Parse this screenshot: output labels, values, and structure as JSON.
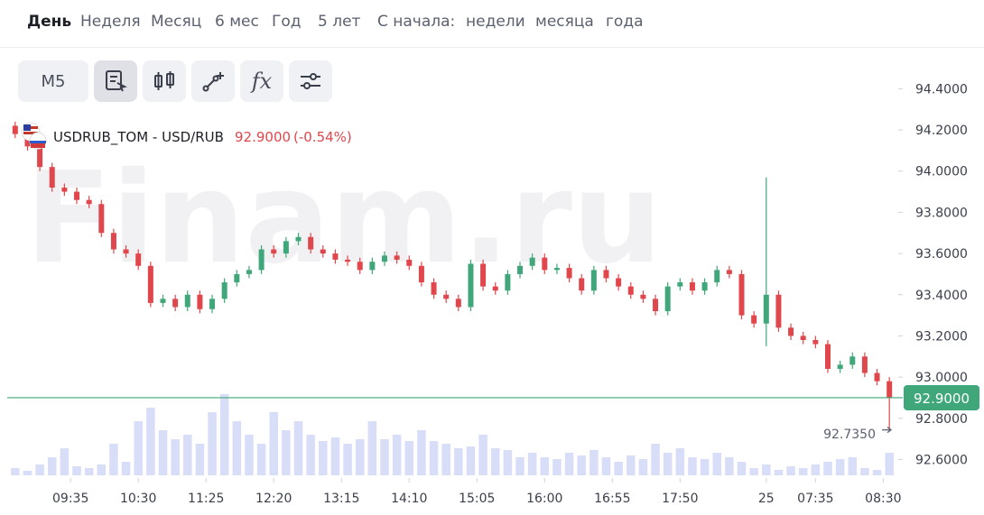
{
  "nav": [
    "День",
    "Неделя",
    "Месяц",
    "6 мес",
    "Год",
    "5 лет",
    "С начала:",
    "недели",
    "месяца",
    "года"
  ],
  "toolbar": {
    "interval": "M5",
    "indicators": "fx"
  },
  "header": {
    "instrument": "USDRUB_TOM - USD/RUB",
    "change": "(-0.54%)"
  },
  "watermark": "Finam.ru",
  "chart_data": {
    "type": "candlestick",
    "up_color": "#3fa77a",
    "down_color": "#e0474c",
    "volume_color": "#d9def8",
    "xlim": [
      0,
      72
    ],
    "xticks": [
      {
        "value": 5,
        "label": "09:35"
      },
      {
        "value": 10.5,
        "label": "10:30"
      },
      {
        "value": 16,
        "label": "11:25"
      },
      {
        "value": 21.5,
        "label": "12:20"
      },
      {
        "value": 27,
        "label": "13:15"
      },
      {
        "value": 32.5,
        "label": "14:10"
      },
      {
        "value": 38,
        "label": "15:05"
      },
      {
        "value": 43.5,
        "label": "16:00"
      },
      {
        "value": 49,
        "label": "16:55"
      },
      {
        "value": 54.5,
        "label": "17:50"
      },
      {
        "value": 61.5,
        "label": "25"
      },
      {
        "value": 65.5,
        "label": "07:35"
      },
      {
        "value": 71,
        "label": "08:30"
      }
    ],
    "ylim": [
      92.51,
      94.59
    ],
    "yticks": [
      {
        "value": 94.4,
        "label": "94.4000"
      },
      {
        "value": 94.2,
        "label": "94.2000"
      },
      {
        "value": 94.0,
        "label": "94.0000"
      },
      {
        "value": 93.8,
        "label": "93.8000"
      },
      {
        "value": 93.6,
        "label": "93.6000"
      },
      {
        "value": 93.4,
        "label": "93.4000"
      },
      {
        "value": 93.2,
        "label": "93.2000"
      },
      {
        "value": 93.0,
        "label": "93.0000"
      },
      {
        "value": 92.8,
        "label": "92.8000"
      },
      {
        "value": 92.6,
        "label": "92.6000"
      }
    ],
    "last_price": {
      "value": 92.9,
      "label": "92.9000",
      "color": "#3fa77a"
    },
    "min_marker": {
      "value": 92.735,
      "label": "92.7350"
    },
    "open": [
      94.22,
      94.18,
      94.12,
      94.02,
      93.92,
      93.9,
      93.86,
      93.84,
      93.7,
      93.62,
      93.6,
      93.54,
      93.36,
      93.38,
      93.34,
      93.4,
      93.33,
      93.38,
      93.46,
      93.5,
      93.52,
      93.62,
      93.6,
      93.66,
      93.68,
      93.62,
      93.6,
      93.57,
      93.56,
      93.52,
      93.56,
      93.59,
      93.57,
      93.54,
      93.46,
      93.4,
      93.38,
      93.34,
      93.55,
      93.44,
      93.42,
      93.5,
      93.54,
      93.58,
      93.52,
      93.53,
      93.48,
      93.42,
      93.52,
      93.48,
      93.44,
      93.4,
      93.38,
      93.32,
      93.44,
      93.46,
      93.42,
      93.46,
      93.52,
      93.5,
      93.3,
      93.26,
      93.4,
      93.24,
      93.2,
      93.18,
      93.16,
      93.04,
      93.06,
      93.1,
      93.02,
      92.98
    ],
    "high": [
      94.24,
      94.2,
      94.14,
      94.04,
      93.94,
      93.92,
      93.88,
      93.86,
      93.72,
      93.64,
      93.62,
      93.56,
      93.4,
      93.4,
      93.42,
      93.42,
      93.4,
      93.48,
      93.52,
      93.54,
      93.64,
      93.64,
      93.68,
      93.7,
      93.7,
      93.64,
      93.62,
      93.59,
      93.58,
      93.58,
      93.61,
      93.61,
      93.59,
      93.56,
      93.48,
      93.42,
      93.4,
      93.57,
      93.57,
      93.46,
      93.52,
      93.56,
      93.6,
      93.6,
      93.55,
      93.55,
      93.5,
      93.54,
      93.54,
      93.5,
      93.46,
      93.42,
      93.4,
      93.46,
      93.48,
      93.48,
      93.48,
      93.54,
      93.54,
      93.52,
      93.32,
      93.97,
      93.42,
      93.26,
      93.22,
      93.2,
      93.18,
      93.08,
      93.12,
      93.12,
      93.04,
      93.0
    ],
    "low": [
      94.16,
      94.1,
      94.0,
      93.9,
      93.88,
      93.84,
      93.82,
      93.68,
      93.6,
      93.58,
      93.52,
      93.34,
      93.34,
      93.32,
      93.32,
      93.31,
      93.31,
      93.36,
      93.44,
      93.48,
      93.5,
      93.58,
      93.58,
      93.64,
      93.6,
      93.58,
      93.55,
      93.54,
      93.5,
      93.5,
      93.54,
      93.55,
      93.52,
      93.44,
      93.38,
      93.36,
      93.32,
      93.32,
      93.42,
      93.4,
      93.4,
      93.48,
      93.52,
      93.5,
      93.5,
      93.46,
      93.4,
      93.4,
      93.46,
      93.42,
      93.38,
      93.36,
      93.3,
      93.3,
      93.42,
      93.4,
      93.4,
      93.44,
      93.48,
      93.28,
      93.24,
      93.15,
      93.22,
      93.18,
      93.16,
      93.14,
      93.02,
      93.02,
      93.04,
      93.0,
      92.96,
      92.735
    ],
    "close": [
      94.18,
      94.12,
      94.02,
      93.92,
      93.9,
      93.86,
      93.84,
      93.7,
      93.62,
      93.6,
      93.54,
      93.36,
      93.38,
      93.34,
      93.4,
      93.33,
      93.38,
      93.46,
      93.5,
      93.52,
      93.62,
      93.6,
      93.66,
      93.68,
      93.62,
      93.6,
      93.57,
      93.56,
      93.52,
      93.56,
      93.59,
      93.57,
      93.54,
      93.46,
      93.4,
      93.38,
      93.34,
      93.55,
      93.44,
      93.42,
      93.5,
      93.54,
      93.58,
      93.52,
      93.53,
      93.48,
      93.42,
      93.52,
      93.48,
      93.44,
      93.4,
      93.38,
      93.32,
      93.44,
      93.46,
      93.42,
      93.46,
      93.52,
      93.5,
      93.3,
      93.26,
      93.4,
      93.24,
      93.2,
      93.18,
      93.16,
      93.04,
      93.06,
      93.1,
      93.02,
      92.98,
      92.9
    ],
    "volume": [
      8,
      5,
      12,
      20,
      30,
      10,
      8,
      12,
      35,
      15,
      60,
      75,
      50,
      40,
      45,
      35,
      70,
      90,
      60,
      45,
      35,
      70,
      50,
      60,
      45,
      38,
      42,
      35,
      40,
      60,
      40,
      45,
      38,
      50,
      38,
      35,
      30,
      32,
      45,
      30,
      28,
      20,
      25,
      20,
      18,
      25,
      22,
      28,
      20,
      15,
      22,
      18,
      35,
      25,
      30,
      20,
      18,
      25,
      20,
      15,
      8,
      12,
      6,
      10,
      8,
      12,
      15,
      18,
      20,
      8,
      6,
      25
    ]
  }
}
